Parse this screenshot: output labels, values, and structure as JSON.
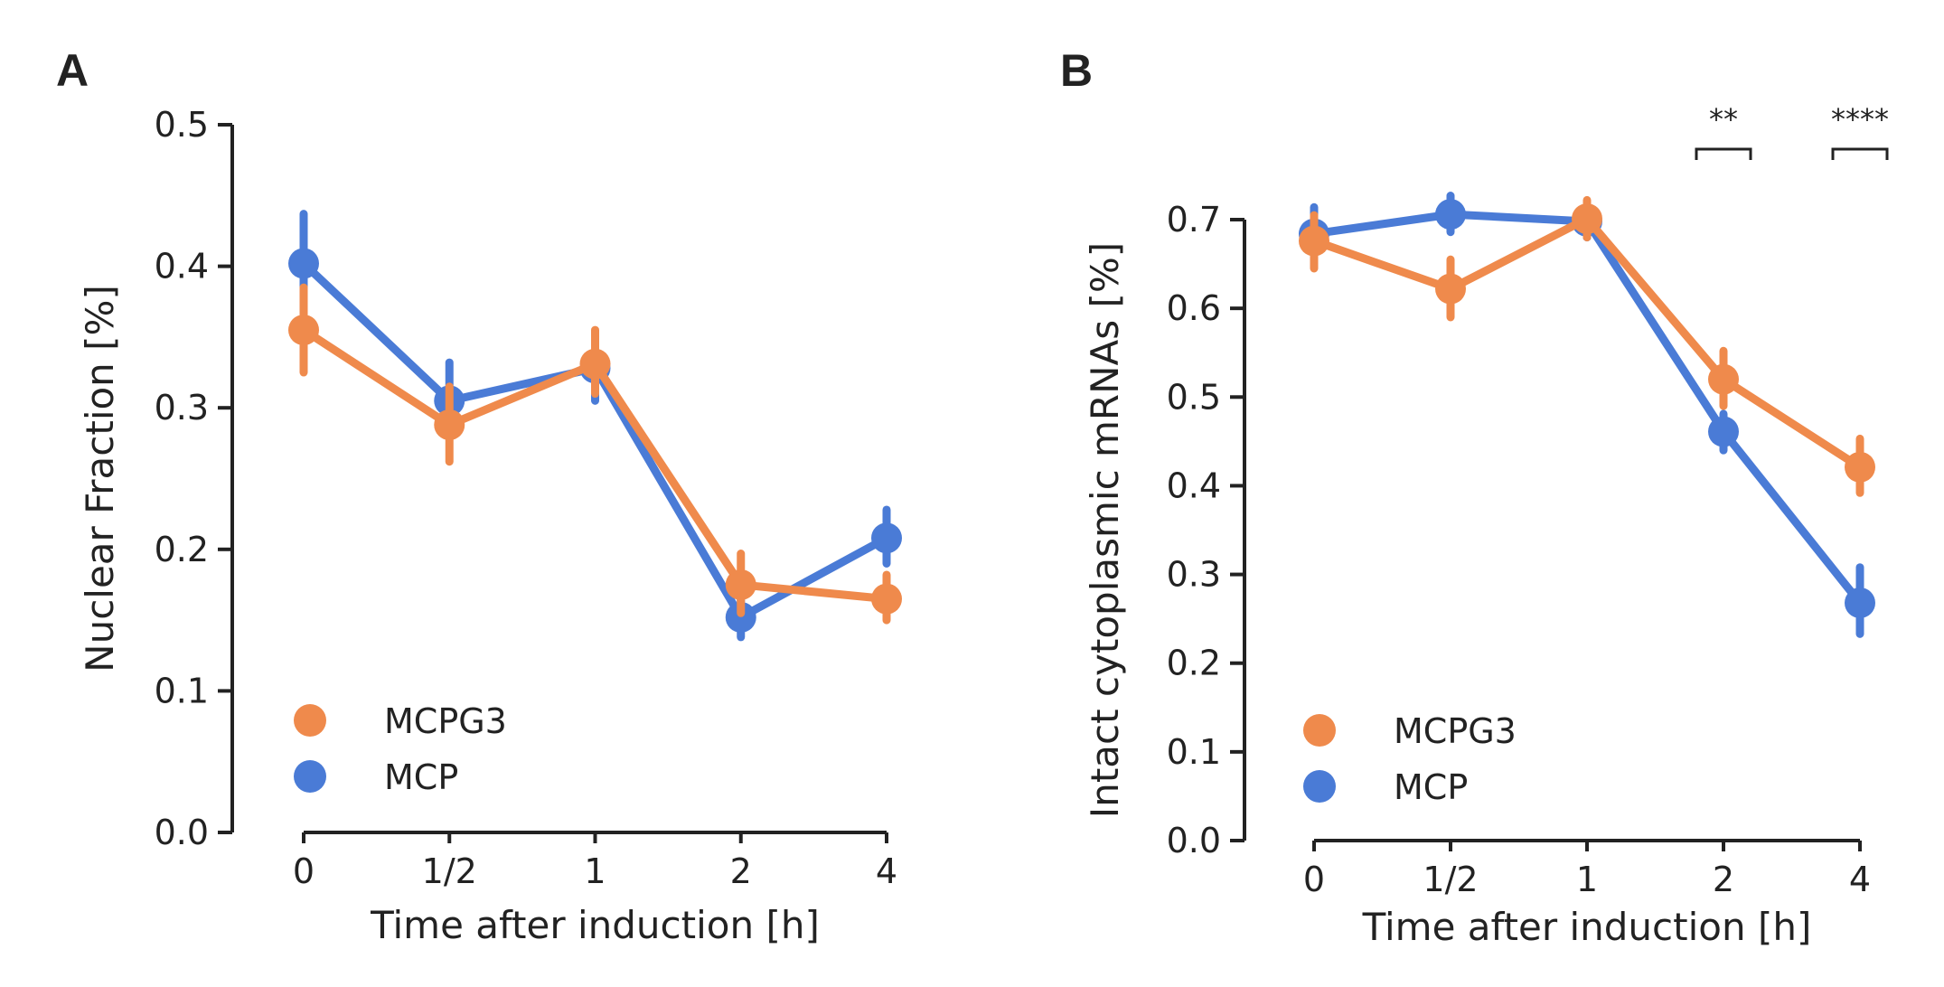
{
  "colors": {
    "MCPG3": "#ef8a4c",
    "MCP": "#4a7bd6",
    "axis": "#222222"
  },
  "chart_data": [
    {
      "type": "line",
      "panel_label": "A",
      "x": [
        "0",
        "1/2",
        "1",
        "2",
        "4"
      ],
      "xlabel": "Time after induction [h]",
      "ylabel": "Nuclear Fraction [%]",
      "ylim": [
        0,
        0.5
      ],
      "yticks": [
        "0.0",
        "0.1",
        "0.2",
        "0.3",
        "0.4",
        "0.5"
      ],
      "grid": false,
      "legend_position": "lower-left",
      "series": [
        {
          "name": "MCPG3",
          "values": [
            0.355,
            0.288,
            0.331,
            0.175,
            0.165
          ],
          "err_low": [
            0.325,
            0.262,
            0.31,
            0.155,
            0.15
          ],
          "err_high": [
            0.385,
            0.315,
            0.355,
            0.197,
            0.182
          ]
        },
        {
          "name": "MCP",
          "values": [
            0.402,
            0.305,
            0.328,
            0.152,
            0.208
          ],
          "err_low": [
            0.365,
            0.28,
            0.305,
            0.138,
            0.19
          ],
          "err_high": [
            0.437,
            0.332,
            0.35,
            0.168,
            0.228
          ]
        }
      ],
      "significance": []
    },
    {
      "type": "line",
      "panel_label": "B",
      "x": [
        "0",
        "1/2",
        "1",
        "2",
        "4"
      ],
      "xlabel": "Time after induction [h]",
      "ylabel": "Intact cytoplasmic mRNAs [%]",
      "ylim": [
        0,
        0.7
      ],
      "yticks": [
        "0.0",
        "0.1",
        "0.2",
        "0.3",
        "0.4",
        "0.5",
        "0.6",
        "0.7"
      ],
      "grid": false,
      "legend_position": "lower-left",
      "series": [
        {
          "name": "MCPG3",
          "values": [
            0.676,
            0.622,
            0.701,
            0.52,
            0.421
          ],
          "err_low": [
            0.645,
            0.59,
            0.68,
            0.49,
            0.392
          ],
          "err_high": [
            0.705,
            0.655,
            0.722,
            0.552,
            0.453
          ]
        },
        {
          "name": "MCP",
          "values": [
            0.684,
            0.706,
            0.698,
            0.461,
            0.268
          ],
          "err_low": [
            0.655,
            0.686,
            0.68,
            0.44,
            0.233
          ],
          "err_high": [
            0.714,
            0.727,
            0.716,
            0.481,
            0.308
          ]
        }
      ],
      "significance": [
        {
          "x": "2",
          "label": "**"
        },
        {
          "x": "4",
          "label": "****"
        }
      ]
    }
  ]
}
